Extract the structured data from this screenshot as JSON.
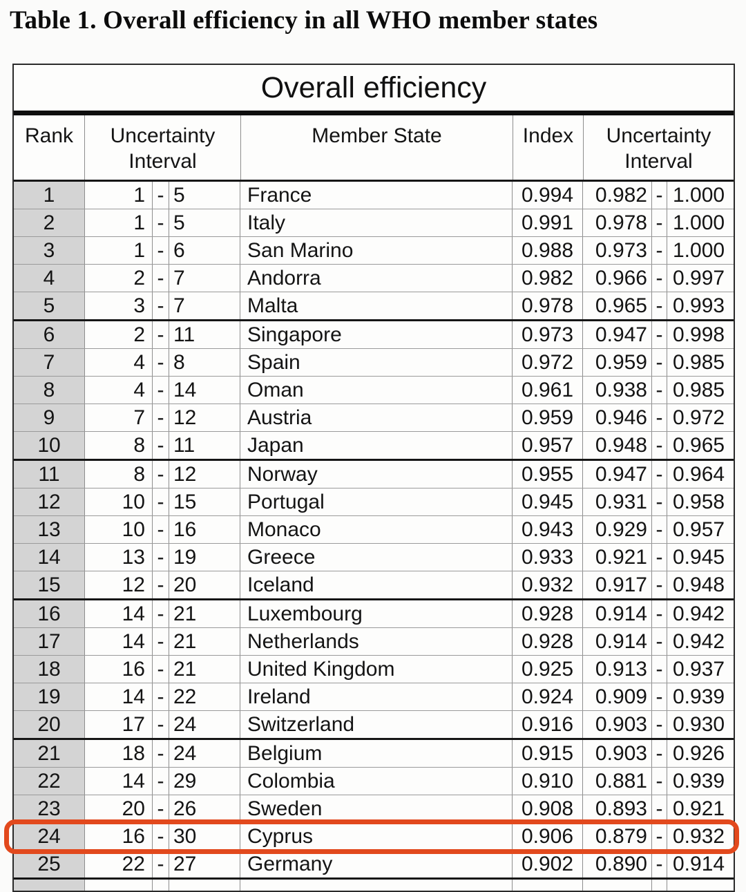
{
  "page": {
    "doc_title": "Table 1. Overall efficiency in all WHO member states"
  },
  "table": {
    "title": "Overall efficiency",
    "columns": {
      "rank": "Rank",
      "uncertainty_interval": "Uncertainty Interval",
      "member_state": "Member State",
      "index": "Index",
      "uncertainty_interval2": "Uncertainty Interval"
    },
    "dash": "-",
    "highlight": {
      "color": "#e2491d",
      "highlighted_rank": "24",
      "highlighted_member": "Cyprus"
    },
    "rows": [
      {
        "rank": "1",
        "ui_low": "1",
        "ui_high": "5",
        "member_state": "France",
        "index": "0.994",
        "ci_low": "0.982",
        "ci_high": "1.000"
      },
      {
        "rank": "2",
        "ui_low": "1",
        "ui_high": "5",
        "member_state": "Italy",
        "index": "0.991",
        "ci_low": "0.978",
        "ci_high": "1.000"
      },
      {
        "rank": "3",
        "ui_low": "1",
        "ui_high": "6",
        "member_state": "San Marino",
        "index": "0.988",
        "ci_low": "0.973",
        "ci_high": "1.000"
      },
      {
        "rank": "4",
        "ui_low": "2",
        "ui_high": "7",
        "member_state": "Andorra",
        "index": "0.982",
        "ci_low": "0.966",
        "ci_high": "0.997"
      },
      {
        "rank": "5",
        "ui_low": "3",
        "ui_high": "7",
        "member_state": "Malta",
        "index": "0.978",
        "ci_low": "0.965",
        "ci_high": "0.993"
      },
      {
        "rank": "6",
        "ui_low": "2",
        "ui_high": "11",
        "member_state": "Singapore",
        "index": "0.973",
        "ci_low": "0.947",
        "ci_high": "0.998"
      },
      {
        "rank": "7",
        "ui_low": "4",
        "ui_high": "8",
        "member_state": "Spain",
        "index": "0.972",
        "ci_low": "0.959",
        "ci_high": "0.985"
      },
      {
        "rank": "8",
        "ui_low": "4",
        "ui_high": "14",
        "member_state": "Oman",
        "index": "0.961",
        "ci_low": "0.938",
        "ci_high": "0.985"
      },
      {
        "rank": "9",
        "ui_low": "7",
        "ui_high": "12",
        "member_state": "Austria",
        "index": "0.959",
        "ci_low": "0.946",
        "ci_high": "0.972"
      },
      {
        "rank": "10",
        "ui_low": "8",
        "ui_high": "11",
        "member_state": "Japan",
        "index": "0.957",
        "ci_low": "0.948",
        "ci_high": "0.965"
      },
      {
        "rank": "11",
        "ui_low": "8",
        "ui_high": "12",
        "member_state": "Norway",
        "index": "0.955",
        "ci_low": "0.947",
        "ci_high": "0.964"
      },
      {
        "rank": "12",
        "ui_low": "10",
        "ui_high": "15",
        "member_state": "Portugal",
        "index": "0.945",
        "ci_low": "0.931",
        "ci_high": "0.958"
      },
      {
        "rank": "13",
        "ui_low": "10",
        "ui_high": "16",
        "member_state": "Monaco",
        "index": "0.943",
        "ci_low": "0.929",
        "ci_high": "0.957"
      },
      {
        "rank": "14",
        "ui_low": "13",
        "ui_high": "19",
        "member_state": "Greece",
        "index": "0.933",
        "ci_low": "0.921",
        "ci_high": "0.945"
      },
      {
        "rank": "15",
        "ui_low": "12",
        "ui_high": "20",
        "member_state": "Iceland",
        "index": "0.932",
        "ci_low": "0.917",
        "ci_high": "0.948"
      },
      {
        "rank": "16",
        "ui_low": "14",
        "ui_high": "21",
        "member_state": "Luxembourg",
        "index": "0.928",
        "ci_low": "0.914",
        "ci_high": "0.942"
      },
      {
        "rank": "17",
        "ui_low": "14",
        "ui_high": "21",
        "member_state": "Netherlands",
        "index": "0.928",
        "ci_low": "0.914",
        "ci_high": "0.942"
      },
      {
        "rank": "18",
        "ui_low": "16",
        "ui_high": "21",
        "member_state": "United Kingdom",
        "index": "0.925",
        "ci_low": "0.913",
        "ci_high": "0.937"
      },
      {
        "rank": "19",
        "ui_low": "14",
        "ui_high": "22",
        "member_state": "Ireland",
        "index": "0.924",
        "ci_low": "0.909",
        "ci_high": "0.939"
      },
      {
        "rank": "20",
        "ui_low": "17",
        "ui_high": "24",
        "member_state": "Switzerland",
        "index": "0.916",
        "ci_low": "0.903",
        "ci_high": "0.930"
      },
      {
        "rank": "21",
        "ui_low": "18",
        "ui_high": "24",
        "member_state": "Belgium",
        "index": "0.915",
        "ci_low": "0.903",
        "ci_high": "0.926"
      },
      {
        "rank": "22",
        "ui_low": "14",
        "ui_high": "29",
        "member_state": "Colombia",
        "index": "0.910",
        "ci_low": "0.881",
        "ci_high": "0.939"
      },
      {
        "rank": "23",
        "ui_low": "20",
        "ui_high": "26",
        "member_state": "Sweden",
        "index": "0.908",
        "ci_low": "0.893",
        "ci_high": "0.921"
      },
      {
        "rank": "24",
        "ui_low": "16",
        "ui_high": "30",
        "member_state": "Cyprus",
        "index": "0.906",
        "ci_low": "0.879",
        "ci_high": "0.932"
      },
      {
        "rank": "25",
        "ui_low": "22",
        "ui_high": "27",
        "member_state": "Germany",
        "index": "0.902",
        "ci_low": "0.890",
        "ci_high": "0.914"
      }
    ]
  }
}
